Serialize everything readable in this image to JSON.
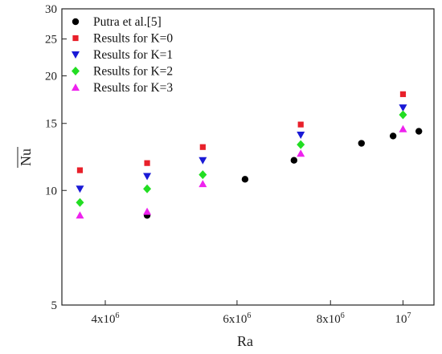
{
  "chart_data": {
    "type": "scatter",
    "xlabel": "Ra",
    "ylabel": "Nu",
    "ylabel_overline": true,
    "x_scale": "log",
    "y_scale": "log",
    "xlim": [
      3500000,
      11000000
    ],
    "ylim": [
      5,
      30
    ],
    "x_ticks": [
      {
        "value": 4000000,
        "base": "4x10",
        "exp": "6"
      },
      {
        "value": 6000000,
        "base": "6x10",
        "exp": "6"
      },
      {
        "value": 8000000,
        "base": "8x10",
        "exp": "6"
      },
      {
        "value": 10000000,
        "base": "10",
        "exp": "7"
      }
    ],
    "y_ticks": [
      {
        "value": 5,
        "label": "5"
      },
      {
        "value": 10,
        "label": "10"
      },
      {
        "value": 15,
        "label": "15"
      },
      {
        "value": 20,
        "label": "20"
      },
      {
        "value": 25,
        "label": "25"
      },
      {
        "value": 30,
        "label": "30"
      }
    ],
    "legend_position": "top-left",
    "series": [
      {
        "name": "Putra et al.[5]",
        "marker": "circle",
        "color": "#000000",
        "x": [
          4550000,
          6150000,
          7150000,
          8800000,
          9700000,
          10500000
        ],
        "y": [
          8.6,
          10.7,
          12.0,
          13.3,
          13.9,
          14.3
        ]
      },
      {
        "name": "Results for K=0",
        "marker": "square",
        "color": "#e8202a",
        "x": [
          3700000,
          4550000,
          5400000,
          7300000,
          10000000
        ],
        "y": [
          11.3,
          11.8,
          13.0,
          14.9,
          17.9
        ]
      },
      {
        "name": "Results for K=1",
        "marker": "triangle-down",
        "color": "#1a1ad6",
        "x": [
          3700000,
          4550000,
          5400000,
          7300000,
          10000000
        ],
        "y": [
          10.1,
          10.9,
          12.0,
          14.0,
          16.5
        ]
      },
      {
        "name": "Results for K=2",
        "marker": "diamond",
        "color": "#22dd22",
        "x": [
          3700000,
          4550000,
          5400000,
          7300000,
          10000000
        ],
        "y": [
          9.3,
          10.1,
          11.0,
          13.2,
          15.8
        ]
      },
      {
        "name": "Results for K=3",
        "marker": "triangle-up",
        "color": "#ee22ee",
        "x": [
          3700000,
          4550000,
          5400000,
          7300000,
          10000000
        ],
        "y": [
          8.6,
          8.8,
          10.4,
          12.5,
          14.5
        ]
      }
    ]
  }
}
